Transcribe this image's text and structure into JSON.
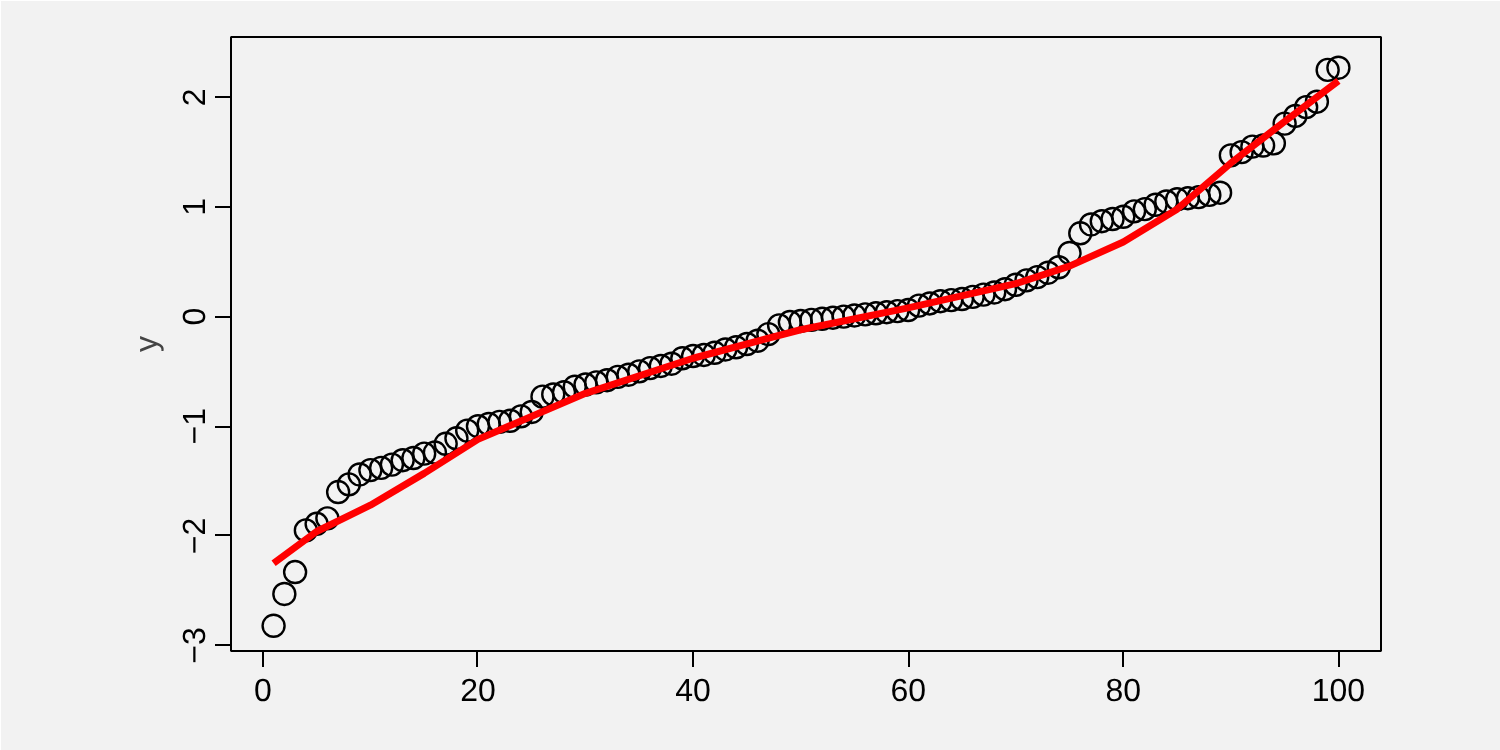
{
  "chart_data": {
    "type": "scatter",
    "ylabel": "y",
    "marker": "circle",
    "grid": false,
    "xlim": [
      -2.96,
      103.96
    ],
    "ylim": [
      -3.05,
      2.55
    ],
    "xticks": [
      0,
      20,
      40,
      60,
      80,
      100
    ],
    "yticks": [
      -3,
      -2,
      -1,
      0,
      1,
      2
    ],
    "x": [
      1,
      2,
      3,
      4,
      5,
      6,
      7,
      8,
      9,
      10,
      11,
      12,
      13,
      14,
      15,
      16,
      17,
      18,
      19,
      20,
      21,
      22,
      23,
      24,
      25,
      26,
      27,
      28,
      29,
      30,
      31,
      32,
      33,
      34,
      35,
      36,
      37,
      38,
      39,
      40,
      41,
      42,
      43,
      44,
      45,
      46,
      47,
      48,
      49,
      50,
      51,
      52,
      53,
      54,
      55,
      56,
      57,
      58,
      59,
      60,
      61,
      62,
      63,
      64,
      65,
      66,
      67,
      68,
      69,
      70,
      71,
      72,
      73,
      74,
      75,
      76,
      77,
      78,
      79,
      80,
      81,
      82,
      83,
      84,
      85,
      86,
      87,
      88,
      89,
      90,
      91,
      92,
      93,
      94,
      95,
      96,
      97,
      98,
      99,
      100
    ],
    "series": [
      {
        "color": "#000000",
        "values": [
          -2.82,
          -2.53,
          -2.33,
          -1.95,
          -1.89,
          -1.84,
          -1.6,
          -1.53,
          -1.44,
          -1.4,
          -1.38,
          -1.35,
          -1.31,
          -1.29,
          -1.25,
          -1.24,
          -1.16,
          -1.11,
          -1.04,
          -1.0,
          -0.98,
          -0.96,
          -0.95,
          -0.91,
          -0.87,
          -0.73,
          -0.71,
          -0.69,
          -0.64,
          -0.62,
          -0.6,
          -0.58,
          -0.55,
          -0.53,
          -0.5,
          -0.47,
          -0.45,
          -0.43,
          -0.38,
          -0.36,
          -0.35,
          -0.33,
          -0.3,
          -0.28,
          -0.25,
          -0.22,
          -0.16,
          -0.08,
          -0.05,
          -0.04,
          -0.03,
          -0.02,
          -0.01,
          0.0,
          0.01,
          0.02,
          0.03,
          0.04,
          0.05,
          0.06,
          0.1,
          0.12,
          0.14,
          0.15,
          0.16,
          0.18,
          0.2,
          0.22,
          0.25,
          0.29,
          0.33,
          0.36,
          0.4,
          0.45,
          0.58,
          0.76,
          0.84,
          0.87,
          0.89,
          0.91,
          0.96,
          0.98,
          1.02,
          1.05,
          1.07,
          1.08,
          1.09,
          1.11,
          1.13,
          1.47,
          1.5,
          1.55,
          1.56,
          1.58,
          1.76,
          1.83,
          1.91,
          1.96,
          2.25,
          2.27
        ]
      },
      {
        "type": "line",
        "marker": "none",
        "color": "#ff0000",
        "x": [
          1,
          5,
          10,
          15,
          20,
          30,
          40,
          50,
          60,
          70,
          75,
          80,
          85,
          90,
          95,
          100
        ],
        "values": [
          -2.25,
          -1.96,
          -1.72,
          -1.43,
          -1.12,
          -0.7,
          -0.38,
          -0.12,
          0.08,
          0.3,
          0.46,
          0.68,
          0.98,
          1.4,
          1.78,
          2.15
        ]
      }
    ]
  }
}
